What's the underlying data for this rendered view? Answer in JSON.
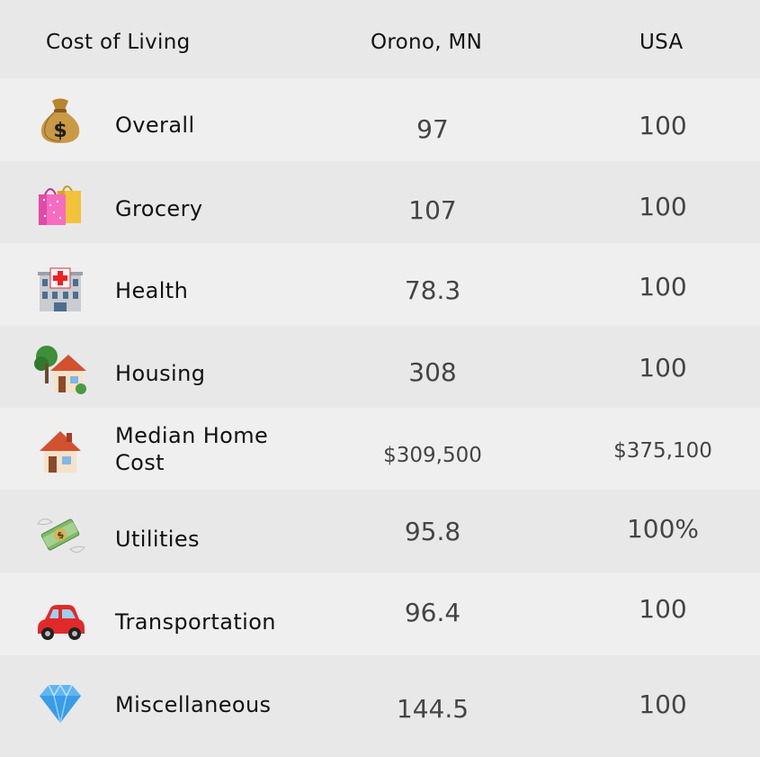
{
  "header": {
    "label_col": "Cost of Living",
    "local_col": "Orono, MN",
    "usa_col": "USA"
  },
  "rows": [
    {
      "icon": "money-bag-icon",
      "label": "Overall",
      "local": "97",
      "usa": "100"
    },
    {
      "icon": "shopping-bags-icon",
      "label": "Grocery",
      "local": "107",
      "usa": "100"
    },
    {
      "icon": "hospital-icon",
      "label": "Health",
      "local": "78.3",
      "usa": "100"
    },
    {
      "icon": "house-with-garden-icon",
      "label": "Housing",
      "local": "308",
      "usa": "100"
    },
    {
      "icon": "house-icon",
      "label_line1": "Median Home",
      "label_line2": "Cost",
      "local": "$309,500",
      "usa": "$375,100"
    },
    {
      "icon": "money-with-wings-icon",
      "label": "Utilities",
      "local": "95.8",
      "usa": "100%"
    },
    {
      "icon": "car-icon",
      "label": "Transportation",
      "local": "96.4",
      "usa": "100"
    },
    {
      "icon": "gem-icon",
      "label": "Miscellaneous",
      "local": "144.5",
      "usa": "100"
    }
  ]
}
